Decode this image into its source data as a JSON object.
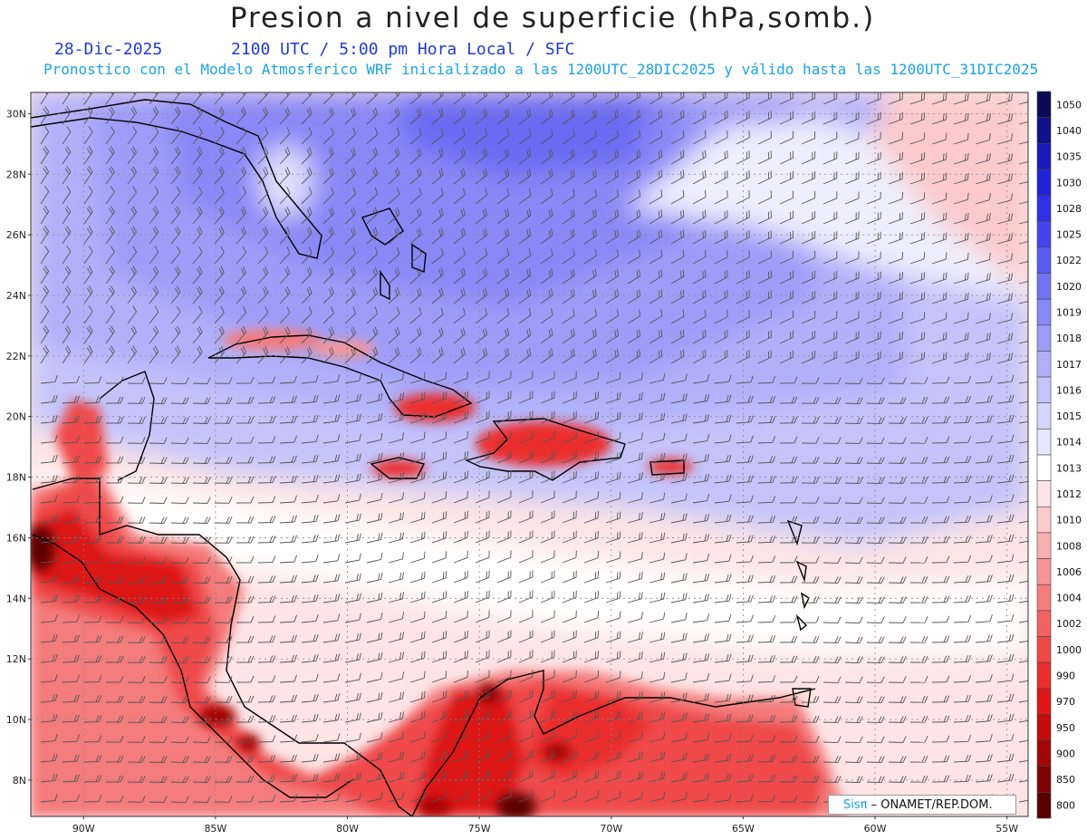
{
  "header": {
    "title": "Presion a nivel de superficie (hPa,somb.)",
    "date": "28-Dic-2025",
    "time": "2100 UTC / 5:00 pm Hora Local / SFC",
    "forecast": "Pronostico con el Modelo Atmosferico WRF inicializado a las 1200UTC_28DIC2025 y válido hasta las  1200UTC_31DIC2025"
  },
  "axes": {
    "lat_labels": [
      "30N",
      "28N",
      "26N",
      "24N",
      "22N",
      "20N",
      "18N",
      "16N",
      "14N",
      "12N",
      "10N",
      "8N"
    ],
    "lon_labels": [
      "90W",
      "85W",
      "80W",
      "75W",
      "70W",
      "65W",
      "60W",
      "55W"
    ],
    "lat_range": [
      6.8,
      30.7
    ],
    "lon_range": [
      -92,
      -54.2
    ]
  },
  "legend": {
    "levels": [
      "1050",
      "1040",
      "1035",
      "1030",
      "1028",
      "1025",
      "1022",
      "1020",
      "1019",
      "1018",
      "1017",
      "1016",
      "1015",
      "1014",
      "1013",
      "1012",
      "1010",
      "1008",
      "1006",
      "1004",
      "1002",
      "1000",
      "990",
      "970",
      "950",
      "900",
      "850",
      "800"
    ],
    "colors": [
      "#0b0b55",
      "#10108a",
      "#1a1ab8",
      "#2323d6",
      "#3030e6",
      "#4545ee",
      "#5b5bf2",
      "#7272f5",
      "#8888f7",
      "#9d9df8",
      "#b1b1fa",
      "#c4c4fb",
      "#d6d6fc",
      "#e7e7fd",
      "#ffffff",
      "#fde5e5",
      "#fbcaca",
      "#f9b0b0",
      "#f69696",
      "#f47c7c",
      "#f26262",
      "#ef4848",
      "#ea2e2e",
      "#dd1717",
      "#c40b0b",
      "#a30606",
      "#800303",
      "#5c0101"
    ]
  },
  "credit": {
    "logo": "Sisπ",
    "text": "– ONAMET/REP.DOM."
  }
}
